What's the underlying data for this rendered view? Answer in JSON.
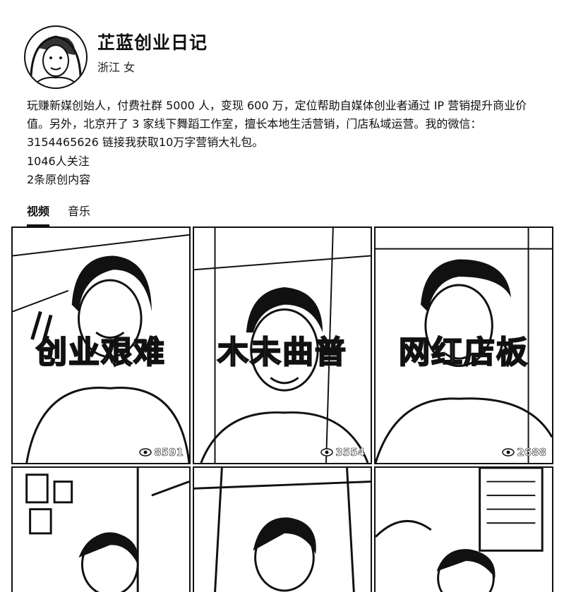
{
  "profile": {
    "name": "芷蓝创业日记",
    "location_gender": "浙江 女",
    "bio": "玩赚新媒创始人，付费社群 5000 人，变现 600 万，定位帮助自媒体创业者通过 IP 营销提升商业价值。另外，北京开了 3 家线下舞蹈工作室，擅长本地生活营销，门店私域运营。我的微信：3154465626 链接我获取10万字营销大礼包。",
    "followers": "1046人关注",
    "original_count": "2条原创内容"
  },
  "tabs": [
    {
      "label": "视频",
      "active": true
    },
    {
      "label": "音乐",
      "active": false
    }
  ],
  "videos": [
    {
      "title": "创业艰难",
      "views": "8591",
      "icon": "eye-icon"
    },
    {
      "title": "木未曲普",
      "views": "3554",
      "icon": "eye-icon"
    },
    {
      "title": "网红店板",
      "views": "2688",
      "icon": "eye-icon"
    },
    {
      "title": "",
      "views": "",
      "icon": ""
    },
    {
      "title": "",
      "views": "",
      "icon": ""
    },
    {
      "title": "",
      "views": "",
      "icon": ""
    }
  ]
}
